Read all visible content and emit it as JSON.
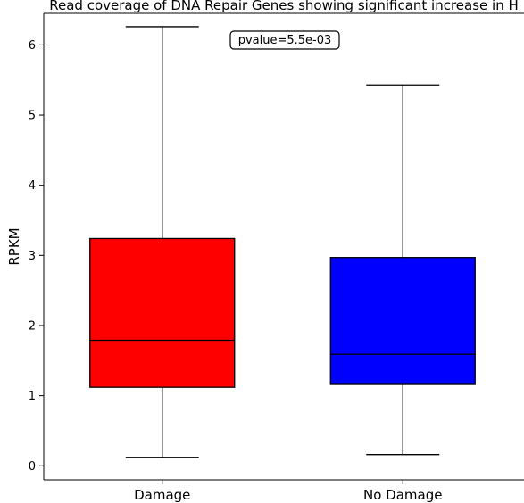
{
  "chart_data": {
    "type": "box",
    "title": "Read coverage of DNA Repair Genes showing significant increase in H",
    "ylabel": "RPKM",
    "xlabel": "",
    "ylim": [
      -0.2,
      6.45
    ],
    "yticks": [
      0,
      1,
      2,
      3,
      4,
      5,
      6
    ],
    "categories": [
      "Damage",
      "No Damage"
    ],
    "boxes": [
      {
        "name": "Damage",
        "whisker_low": 0.12,
        "q1": 1.12,
        "median": 1.79,
        "q3": 3.24,
        "whisker_high": 6.26,
        "color": "#ff0000"
      },
      {
        "name": "No Damage",
        "whisker_low": 0.16,
        "q1": 1.16,
        "median": 1.59,
        "q3": 2.97,
        "whisker_high": 5.43,
        "color": "#0000ff"
      }
    ],
    "annotation": "pvalue=5.5e-03",
    "annotation_placement": "top-center",
    "grid": false,
    "legend": "none"
  }
}
